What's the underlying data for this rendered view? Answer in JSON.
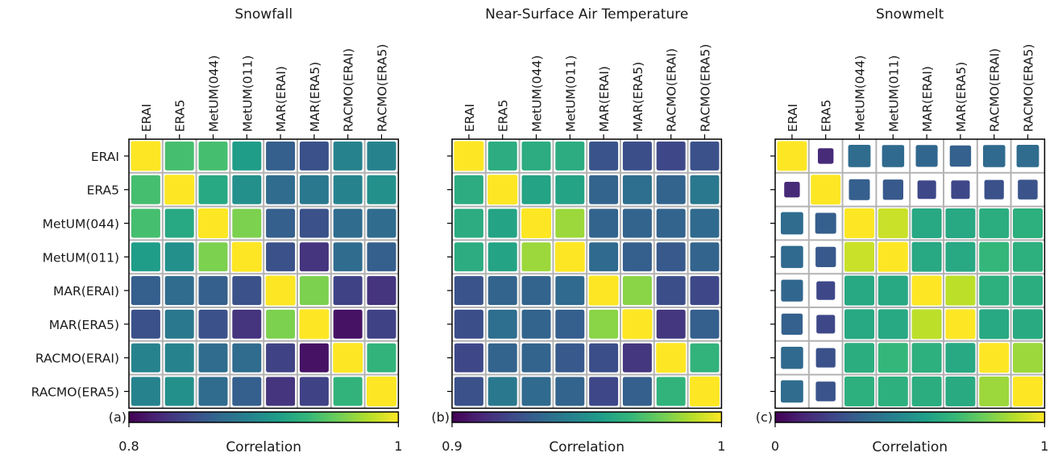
{
  "chart_data": [
    {
      "type": "heatmap",
      "title": "Snowfall",
      "panel_label": "(a)",
      "colorbar": {
        "label": "Correlation",
        "min": 0.8,
        "max": 1,
        "min_label": "0.8",
        "max_label": "1",
        "colormap": "viridis"
      },
      "rows": [
        "ERAI",
        "ERA5",
        "MetUM(044)",
        "MetUM(011)",
        "MAR(ERAI)",
        "MAR(ERA5)",
        "RACMO(ERAI)",
        "RACMO(ERA5)"
      ],
      "columns": [
        "ERAI",
        "ERA5",
        "MetUM(044)",
        "MetUM(011)",
        "MAR(ERAI)",
        "MAR(ERA5)",
        "RACMO(ERAI)",
        "RACMO(ERA5)"
      ],
      "values": [
        [
          1.0,
          0.94,
          0.94,
          0.91,
          0.86,
          0.85,
          0.89,
          0.89
        ],
        [
          0.94,
          1.0,
          0.92,
          0.9,
          0.87,
          0.88,
          0.89,
          0.9
        ],
        [
          0.94,
          0.92,
          1.0,
          0.96,
          0.86,
          0.85,
          0.87,
          0.87
        ],
        [
          0.91,
          0.9,
          0.96,
          1.0,
          0.85,
          0.83,
          0.87,
          0.86
        ],
        [
          0.86,
          0.87,
          0.86,
          0.85,
          1.0,
          0.96,
          0.84,
          0.83
        ],
        [
          0.85,
          0.88,
          0.85,
          0.83,
          0.96,
          1.0,
          0.81,
          0.84
        ],
        [
          0.89,
          0.89,
          0.87,
          0.87,
          0.84,
          0.81,
          1.0,
          0.93
        ],
        [
          0.89,
          0.9,
          0.87,
          0.86,
          0.83,
          0.84,
          0.93,
          1.0
        ]
      ]
    },
    {
      "type": "heatmap",
      "title": "Near-Surface Air Temperature",
      "panel_label": "(b)",
      "colorbar": {
        "label": "Correlation",
        "min": 0.9,
        "max": 1,
        "min_label": "0.9",
        "max_label": "1",
        "colormap": "viridis"
      },
      "rows": [
        "ERAI",
        "ERA5",
        "MetUM(044)",
        "MetUM(011)",
        "MAR(ERAI)",
        "MAR(ERA5)",
        "RACMO(ERAI)",
        "RACMO(ERA5)"
      ],
      "columns": [
        "ERAI",
        "ERA5",
        "MetUM(044)",
        "MetUM(011)",
        "MAR(ERAI)",
        "MAR(ERA5)",
        "RACMO(ERAI)",
        "RACMO(ERA5)"
      ],
      "values": [
        [
          1.0,
          0.962,
          0.962,
          0.962,
          0.926,
          0.924,
          0.922,
          0.925
        ],
        [
          0.962,
          1.0,
          0.958,
          0.958,
          0.932,
          0.936,
          0.932,
          0.94
        ],
        [
          0.962,
          0.958,
          1.0,
          0.985,
          0.932,
          0.932,
          0.932,
          0.934
        ],
        [
          0.962,
          0.958,
          0.985,
          1.0,
          0.934,
          0.93,
          0.928,
          0.932
        ],
        [
          0.926,
          0.932,
          0.932,
          0.934,
          1.0,
          0.982,
          0.924,
          0.922
        ],
        [
          0.924,
          0.936,
          0.932,
          0.93,
          0.982,
          1.0,
          0.916,
          0.93
        ],
        [
          0.922,
          0.932,
          0.932,
          0.928,
          0.924,
          0.916,
          1.0,
          0.965
        ],
        [
          0.925,
          0.94,
          0.934,
          0.932,
          0.922,
          0.93,
          0.965,
          1.0
        ]
      ]
    },
    {
      "type": "heatmap",
      "title": "Snowmelt",
      "panel_label": "(c)",
      "colorbar": {
        "label": "Correlation",
        "min": 0,
        "max": 1,
        "min_label": "0",
        "max_label": "1",
        "colormap": "viridis"
      },
      "rows": [
        "ERAI",
        "ERA5",
        "MetUM(044)",
        "MetUM(011)",
        "MAR(ERAI)",
        "MAR(ERA5)",
        "RACMO(ERAI)",
        "RACMO(ERA5)"
      ],
      "columns": [
        "ERAI",
        "ERA5",
        "MetUM(044)",
        "MetUM(011)",
        "MAR(ERAI)",
        "MAR(ERA5)",
        "RACMO(ERAI)",
        "RACMO(ERA5)"
      ],
      "values": [
        [
          1.0,
          0.12,
          0.35,
          0.34,
          0.33,
          0.31,
          0.34,
          0.35
        ],
        [
          0.12,
          1.0,
          0.3,
          0.28,
          0.22,
          0.22,
          0.25,
          0.26
        ],
        [
          0.35,
          0.3,
          1.0,
          0.92,
          0.6,
          0.6,
          0.62,
          0.63
        ],
        [
          0.34,
          0.28,
          0.92,
          1.0,
          0.6,
          0.6,
          0.66,
          0.63
        ],
        [
          0.33,
          0.22,
          0.6,
          0.6,
          1.0,
          0.9,
          0.63,
          0.62
        ],
        [
          0.31,
          0.22,
          0.6,
          0.6,
          0.9,
          1.0,
          0.6,
          0.61
        ],
        [
          0.34,
          0.25,
          0.62,
          0.66,
          0.63,
          0.6,
          1.0,
          0.85
        ],
        [
          0.35,
          0.26,
          0.63,
          0.63,
          0.62,
          0.61,
          0.85,
          1.0
        ]
      ]
    }
  ]
}
